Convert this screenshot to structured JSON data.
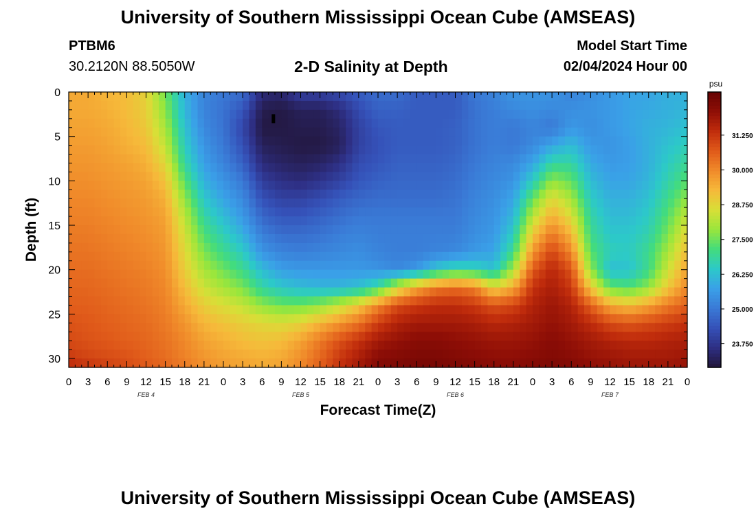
{
  "header": {
    "title": "University of Southern Mississippi Ocean Cube (AMSEAS)",
    "station_id": "PTBM6",
    "station_coords": "30.2120N  88.5050W",
    "plot_title": "2-D Salinity at Depth",
    "model_start_label": "Model Start Time",
    "model_start_value": "02/04/2024 Hour 00"
  },
  "footer": {
    "title": "University of Southern Mississippi Ocean Cube (AMSEAS)"
  },
  "chart_data": {
    "type": "heatmap",
    "title": "2-D Salinity at Depth",
    "xlabel": "Forecast Time(Z)",
    "ylabel": "Depth (ft)",
    "x_hours": [
      0,
      3,
      6,
      9,
      12,
      15,
      18,
      21,
      24,
      27,
      30,
      33,
      36,
      39,
      42,
      45,
      48,
      51,
      54,
      57,
      60,
      63,
      66,
      69,
      72,
      75,
      78,
      81,
      84,
      87,
      90,
      93,
      96
    ],
    "x_tick_labels": [
      "0",
      "3",
      "6",
      "9",
      "12",
      "15",
      "18",
      "21",
      "0",
      "3",
      "6",
      "9",
      "12",
      "15",
      "18",
      "21",
      "0",
      "3",
      "6",
      "9",
      "12",
      "15",
      "18",
      "21",
      "0",
      "3",
      "6",
      "9",
      "12",
      "15",
      "18",
      "21",
      "0"
    ],
    "x_range": [
      0,
      96
    ],
    "date_labels": [
      {
        "label": "FEB 4",
        "hour": 12
      },
      {
        "label": "FEB 5",
        "hour": 36
      },
      {
        "label": "FEB 6",
        "hour": 60
      },
      {
        "label": "FEB 7",
        "hour": 84
      }
    ],
    "y_ticks": [
      0,
      5,
      10,
      15,
      20,
      25,
      30
    ],
    "y_range": [
      0,
      31
    ],
    "depths": [
      0,
      2,
      4,
      6,
      8,
      10,
      12,
      14,
      16,
      18,
      20,
      22,
      24,
      26,
      28,
      30,
      31
    ],
    "values": [
      [
        29.5,
        29.5,
        29.3,
        29.2,
        28.8,
        27.5,
        26.0,
        25.2,
        25.0,
        24.8,
        23.5,
        23.4,
        24.0,
        24.0,
        24.2,
        24.5,
        24.8,
        24.8,
        24.5,
        24.5,
        24.5,
        25.0,
        25.2,
        25.5,
        25.5,
        25.5,
        25.2,
        25.4,
        25.6,
        25.8,
        25.8,
        26.0,
        26.0
      ],
      [
        29.5,
        29.5,
        29.4,
        29.2,
        28.9,
        27.7,
        26.1,
        25.2,
        24.9,
        24.4,
        23.1,
        23.0,
        23.2,
        23.2,
        23.5,
        24.2,
        24.6,
        24.6,
        24.5,
        24.5,
        24.5,
        24.9,
        25.1,
        25.3,
        25.4,
        25.3,
        25.4,
        25.5,
        25.6,
        25.8,
        25.9,
        26.0,
        26.1
      ],
      [
        29.6,
        29.6,
        29.5,
        29.3,
        29.0,
        28.0,
        26.3,
        25.3,
        24.9,
        24.1,
        23.0,
        23.0,
        23.1,
        23.1,
        23.3,
        24.0,
        24.4,
        24.5,
        24.5,
        24.5,
        24.6,
        24.9,
        25.1,
        25.0,
        25.2,
        25.0,
        25.6,
        25.4,
        25.6,
        25.8,
        26.0,
        26.1,
        26.3
      ],
      [
        29.7,
        29.7,
        29.6,
        29.4,
        29.2,
        28.3,
        26.5,
        25.5,
        25.0,
        24.3,
        23.2,
        23.1,
        23.0,
        23.0,
        23.2,
        24.0,
        24.3,
        24.5,
        24.5,
        24.5,
        24.6,
        24.9,
        25.1,
        25.0,
        25.3,
        25.8,
        26.2,
        25.6,
        25.5,
        25.7,
        26.0,
        26.3,
        26.6
      ],
      [
        29.8,
        29.8,
        29.7,
        29.6,
        29.4,
        28.7,
        26.8,
        25.7,
        25.2,
        24.6,
        23.5,
        23.3,
        23.2,
        23.3,
        23.6,
        24.2,
        24.4,
        24.6,
        24.6,
        24.6,
        24.7,
        25.0,
        25.2,
        25.3,
        25.8,
        26.8,
        26.8,
        25.9,
        25.6,
        25.7,
        26.0,
        26.5,
        26.9
      ],
      [
        29.9,
        29.9,
        29.8,
        29.7,
        29.6,
        29.1,
        27.3,
        26.0,
        25.5,
        25.0,
        23.9,
        23.6,
        23.5,
        23.7,
        24.0,
        24.4,
        24.6,
        24.7,
        24.7,
        24.7,
        24.8,
        25.1,
        25.3,
        25.5,
        26.5,
        27.8,
        27.4,
        26.2,
        25.8,
        25.8,
        26.1,
        26.7,
        27.3
      ],
      [
        30.0,
        30.0,
        29.9,
        29.8,
        29.7,
        29.4,
        27.8,
        26.4,
        25.8,
        25.3,
        24.3,
        24.0,
        24.0,
        24.2,
        24.5,
        24.7,
        24.8,
        24.8,
        24.8,
        24.8,
        24.9,
        25.2,
        25.4,
        25.8,
        27.4,
        28.7,
        28.0,
        26.5,
        26.0,
        26.0,
        26.3,
        27.0,
        27.8
      ],
      [
        30.1,
        30.1,
        30.0,
        29.9,
        29.8,
        29.6,
        28.2,
        26.8,
        26.2,
        25.6,
        24.7,
        24.4,
        24.4,
        24.6,
        24.8,
        25.0,
        25.0,
        25.0,
        25.0,
        25.0,
        25.0,
        25.3,
        25.5,
        26.1,
        28.2,
        29.4,
        28.6,
        26.8,
        26.2,
        26.2,
        26.5,
        27.3,
        28.3
      ],
      [
        30.2,
        30.2,
        30.1,
        30.0,
        29.9,
        29.7,
        28.5,
        27.2,
        26.6,
        26.0,
        25.1,
        24.8,
        24.8,
        24.9,
        25.1,
        25.2,
        25.1,
        25.1,
        25.1,
        25.1,
        25.1,
        25.4,
        25.6,
        26.5,
        29.0,
        30.2,
        29.3,
        27.0,
        26.4,
        26.4,
        26.7,
        27.6,
        28.8
      ],
      [
        30.3,
        30.3,
        30.2,
        30.1,
        30.0,
        29.8,
        28.7,
        27.6,
        27.0,
        26.5,
        25.5,
        25.2,
        25.1,
        25.2,
        25.3,
        25.4,
        25.2,
        25.1,
        25.1,
        25.2,
        25.3,
        25.6,
        25.8,
        27.0,
        29.8,
        31.0,
        30.0,
        27.3,
        26.6,
        26.5,
        27.0,
        28.0,
        29.2
      ],
      [
        30.4,
        30.4,
        30.3,
        30.2,
        30.1,
        29.9,
        28.9,
        28.0,
        27.5,
        27.0,
        26.2,
        25.7,
        25.6,
        25.6,
        25.6,
        25.6,
        25.5,
        25.3,
        25.6,
        26.4,
        26.8,
        26.7,
        26.3,
        28.0,
        30.7,
        31.5,
        30.8,
        27.8,
        26.2,
        26.3,
        27.0,
        28.4,
        29.6
      ],
      [
        30.5,
        30.5,
        30.4,
        30.3,
        30.2,
        30.0,
        29.2,
        28.4,
        28.0,
        27.6,
        26.8,
        26.4,
        26.2,
        26.1,
        26.1,
        26.3,
        26.9,
        28.4,
        29.5,
        30.2,
        30.4,
        30.1,
        28.8,
        29.5,
        31.3,
        31.7,
        31.2,
        29.0,
        27.4,
        27.2,
        27.8,
        29.0,
        30.0
      ],
      [
        30.6,
        30.6,
        30.5,
        30.4,
        30.3,
        30.1,
        29.5,
        28.9,
        28.6,
        28.3,
        27.8,
        27.5,
        27.5,
        27.8,
        28.3,
        29.0,
        30.0,
        30.9,
        31.2,
        31.4,
        31.4,
        31.2,
        30.8,
        31.0,
        31.6,
        31.9,
        31.6,
        30.6,
        29.5,
        29.2,
        29.6,
        30.2,
        30.6
      ],
      [
        30.8,
        30.7,
        30.6,
        30.5,
        30.4,
        30.2,
        29.8,
        29.3,
        29.1,
        28.9,
        28.7,
        28.6,
        28.8,
        29.3,
        29.8,
        30.3,
        31.1,
        31.6,
        31.8,
        31.8,
        31.8,
        31.7,
        31.5,
        31.6,
        31.8,
        32.0,
        31.8,
        31.4,
        30.9,
        30.7,
        30.9,
        31.1,
        31.3
      ],
      [
        30.9,
        30.8,
        30.7,
        30.6,
        30.5,
        30.3,
        30.0,
        29.6,
        29.4,
        29.2,
        29.1,
        29.2,
        29.6,
        30.2,
        30.8,
        31.3,
        31.8,
        32.0,
        32.2,
        32.2,
        32.1,
        32.0,
        31.9,
        31.9,
        32.0,
        32.2,
        32.0,
        31.8,
        31.6,
        31.5,
        31.5,
        31.6,
        31.7
      ],
      [
        31.2,
        31.0,
        30.9,
        30.8,
        30.6,
        30.4,
        30.1,
        29.8,
        29.6,
        29.5,
        29.4,
        29.5,
        29.9,
        30.5,
        31.2,
        31.7,
        32.2,
        32.3,
        32.4,
        32.4,
        32.3,
        32.2,
        32.1,
        32.1,
        32.2,
        32.3,
        32.2,
        32.0,
        31.9,
        31.8,
        31.8,
        31.8,
        31.9
      ],
      [
        31.5,
        31.3,
        31.1,
        30.9,
        30.7,
        30.5,
        30.2,
        29.9,
        29.7,
        29.6,
        29.5,
        29.6,
        30.0,
        30.6,
        31.3,
        31.8,
        32.3,
        32.4,
        32.5,
        32.5,
        32.4,
        32.3,
        32.2,
        32.2,
        32.3,
        32.4,
        32.3,
        32.1,
        32.0,
        31.9,
        31.9,
        31.9,
        32.0
      ]
    ],
    "colorbar": {
      "unit": "psu",
      "ticks": [
        23.75,
        25.0,
        26.25,
        27.5,
        28.75,
        30.0,
        31.25
      ],
      "tick_labels": [
        "23.750",
        "25.000",
        "26.250",
        "27.500",
        "28.750",
        "30.000",
        "31.250"
      ],
      "range": [
        22.9,
        32.8
      ]
    },
    "colormap": [
      "#22163a",
      "#2e2f84",
      "#3551b8",
      "#3a7ad6",
      "#3aa0e8",
      "#2cc9c9",
      "#43dc7c",
      "#9ae63c",
      "#d8df37",
      "#f6b93a",
      "#f08a2a",
      "#e05a1a",
      "#c02c0c",
      "#8e0e06",
      "#660303"
    ]
  }
}
